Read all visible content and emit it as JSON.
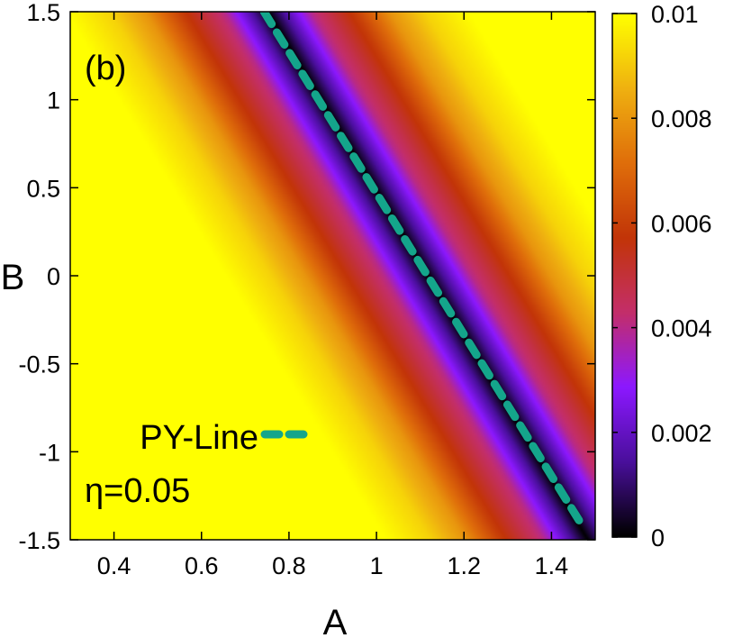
{
  "chart_data": {
    "type": "heatmap",
    "panel_label": "(b)",
    "xlabel": "A",
    "ylabel": "B",
    "xlim": [
      0.3,
      1.5
    ],
    "ylim": [
      -1.5,
      1.5
    ],
    "x_ticks": [
      0.4,
      0.6,
      0.8,
      1.0,
      1.2,
      1.4
    ],
    "x_tick_labels": [
      "0.4",
      "0.6",
      "0.8",
      "1",
      "1.2",
      "1.4"
    ],
    "y_ticks": [
      -1.5,
      -1.0,
      -0.5,
      0.0,
      0.5,
      1.0,
      1.5
    ],
    "y_tick_labels": [
      "-1.5",
      "-1",
      "-0.5",
      "0",
      "0.5",
      "1",
      "1.5"
    ],
    "colorbar": {
      "range": [
        0,
        0.01
      ],
      "ticks": [
        0,
        0.002,
        0.004,
        0.006,
        0.008,
        0.01
      ],
      "tick_labels": [
        "0",
        "0.002",
        "0.004",
        "0.006",
        "0.008",
        "0.01"
      ],
      "colormap": [
        "#000000",
        "#4a0f9c",
        "#8c18ff",
        "#c32e6a",
        "#c23408",
        "#df6d0a",
        "#efb010",
        "#ffff00"
      ]
    },
    "field_zero_line": {
      "A_intercept": 1.117,
      "slope_dA_dB": -0.244
    },
    "field_profile": {
      "distance_from_zero_line": [
        0.0,
        0.1,
        0.2,
        0.28,
        0.36,
        0.46
      ],
      "value": [
        0.0,
        0.004,
        0.006,
        0.008,
        0.0092,
        0.01
      ]
    },
    "series": [
      {
        "name": "PY-Line",
        "style": "dashed",
        "color": "#14a58b",
        "x": [
          0.743,
          1.473
        ],
        "y": [
          1.5,
          -1.43
        ]
      }
    ],
    "annotations": [
      "η=0.05"
    ]
  }
}
